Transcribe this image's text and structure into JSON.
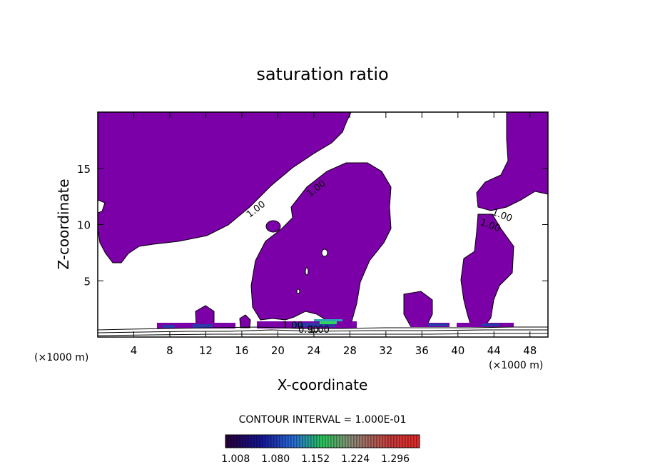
{
  "chart_data": {
    "type": "contour",
    "title": "saturation ratio",
    "xlabel": "X-coordinate",
    "ylabel": "Z-coordinate",
    "x_unit": "(×1000 m)",
    "x_unit_right": "(×1000 m)",
    "xlim": [
      0,
      50
    ],
    "ylim": [
      0,
      20
    ],
    "x_ticks": [
      "4",
      "8",
      "12",
      "16",
      "20",
      "24",
      "28",
      "32",
      "36",
      "40",
      "44",
      "48"
    ],
    "y_ticks": [
      "5",
      "10",
      "15"
    ],
    "x_tick_values": [
      4,
      8,
      12,
      16,
      20,
      24,
      28,
      32,
      36,
      40,
      44,
      48
    ],
    "y_tick_values": [
      5,
      10,
      15
    ],
    "contour_labels": [
      "1.00",
      "1.00",
      "1.00",
      "1.00",
      "1.00",
      "0.90",
      "1.00"
    ],
    "contour_interval_text": "CONTOUR INTERVAL = 1.000E-01",
    "colorbar": {
      "labels": [
        "1.008",
        "1.080",
        "1.152",
        "1.224",
        "1.296"
      ],
      "values": [
        1.008,
        1.08,
        1.152,
        1.224,
        1.296
      ]
    },
    "fill_color": "#7b00a8"
  }
}
